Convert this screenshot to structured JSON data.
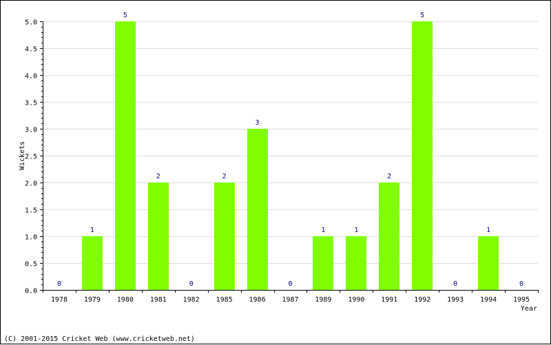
{
  "chart_data": {
    "type": "bar",
    "categories": [
      "1978",
      "1979",
      "1980",
      "1981",
      "1982",
      "1985",
      "1986",
      "1987",
      "1989",
      "1990",
      "1991",
      "1992",
      "1993",
      "1994",
      "1995"
    ],
    "values": [
      0,
      1,
      5,
      2,
      0,
      2,
      3,
      0,
      1,
      1,
      2,
      5,
      0,
      1,
      0
    ],
    "xlabel": "Year",
    "ylabel": "Wickets",
    "ylim": [
      0,
      5
    ],
    "yticks": [
      "0.0",
      "0.5",
      "1.0",
      "1.5",
      "2.0",
      "2.5",
      "3.0",
      "3.5",
      "4.0",
      "4.5",
      "5.0"
    ],
    "grid": true,
    "bar_color": "#80ff00",
    "label_color": "#000080"
  },
  "footer": {
    "copyright": "(C) 2001-2015 Cricket Web (www.cricketweb.net)"
  }
}
